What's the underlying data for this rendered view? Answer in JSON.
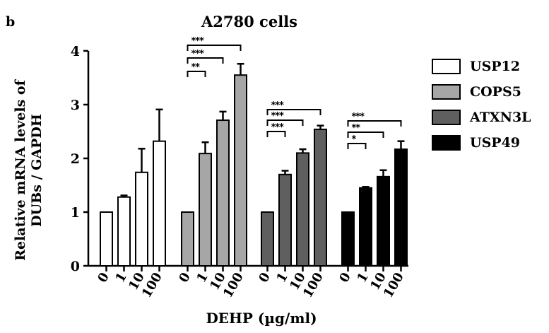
{
  "panel_letter": "b",
  "chart_data": {
    "type": "bar",
    "title": "A2780 cells",
    "xlabel": "DEHP (µg/ml)",
    "ylabel": [
      "Relative mRNA levels of",
      "DUBs / GAPDH"
    ],
    "ylim": [
      0,
      4
    ],
    "yticks": [
      "0",
      "1",
      "2",
      "3",
      "4"
    ],
    "categories": [
      "0",
      "1",
      "10",
      "100"
    ],
    "legend_position": "right",
    "series": [
      {
        "name": "USP12",
        "color": "#ffffff",
        "values": [
          1.0,
          1.28,
          1.74,
          2.32
        ],
        "errors": [
          0,
          0.03,
          0.44,
          0.59
        ],
        "significance": []
      },
      {
        "name": "COPS5",
        "color": "#a6a6a6",
        "values": [
          1.0,
          2.09,
          2.71,
          3.55
        ],
        "errors": [
          0,
          0.21,
          0.16,
          0.21
        ],
        "significance": [
          "**",
          "***",
          "***"
        ]
      },
      {
        "name": "ATXN3L",
        "color": "#5f5f5f",
        "values": [
          1.0,
          1.7,
          2.1,
          2.54
        ],
        "errors": [
          0,
          0.07,
          0.07,
          0.07
        ],
        "significance": [
          "***",
          "***",
          "***"
        ]
      },
      {
        "name": "USP49",
        "color": "#000000",
        "values": [
          1.0,
          1.45,
          1.66,
          2.17
        ],
        "errors": [
          0,
          0.02,
          0.12,
          0.15
        ],
        "significance": [
          "*",
          "**",
          "***"
        ]
      }
    ]
  }
}
